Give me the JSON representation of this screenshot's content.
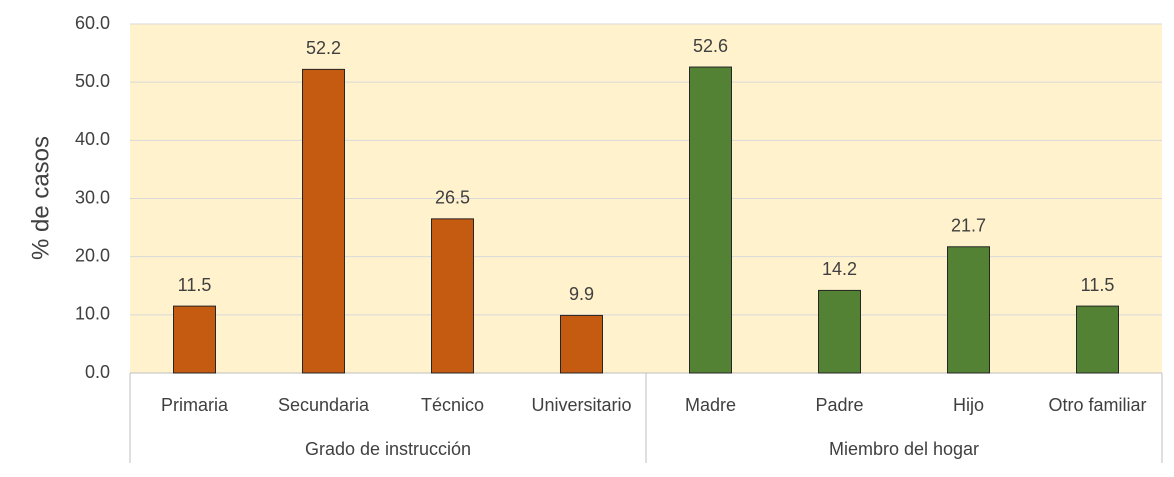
{
  "chart_data": {
    "type": "bar",
    "y_label": "% de casos",
    "ylim": [
      0,
      60
    ],
    "yticks": [
      {
        "value": 0,
        "label": "0.0"
      },
      {
        "value": 10,
        "label": "10.0"
      },
      {
        "value": 20,
        "label": "20.0"
      },
      {
        "value": 30,
        "label": "30.0"
      },
      {
        "value": 40,
        "label": "40.0"
      },
      {
        "value": 50,
        "label": "50.0"
      },
      {
        "value": 60,
        "label": "60.0"
      }
    ],
    "grid": true,
    "groups": [
      {
        "name": "Grado de instrucción",
        "color": "#c55a11",
        "categories": [
          "Primaria",
          "Secundaria",
          "Técnico",
          "Universitario"
        ],
        "values": [
          11.5,
          52.2,
          26.5,
          9.9
        ]
      },
      {
        "name": "Miembro del hogar",
        "color": "#548235",
        "categories": [
          "Madre",
          "Padre",
          "Hijo",
          "Otro familiar"
        ],
        "values": [
          52.6,
          14.2,
          21.7,
          11.5
        ]
      }
    ]
  }
}
